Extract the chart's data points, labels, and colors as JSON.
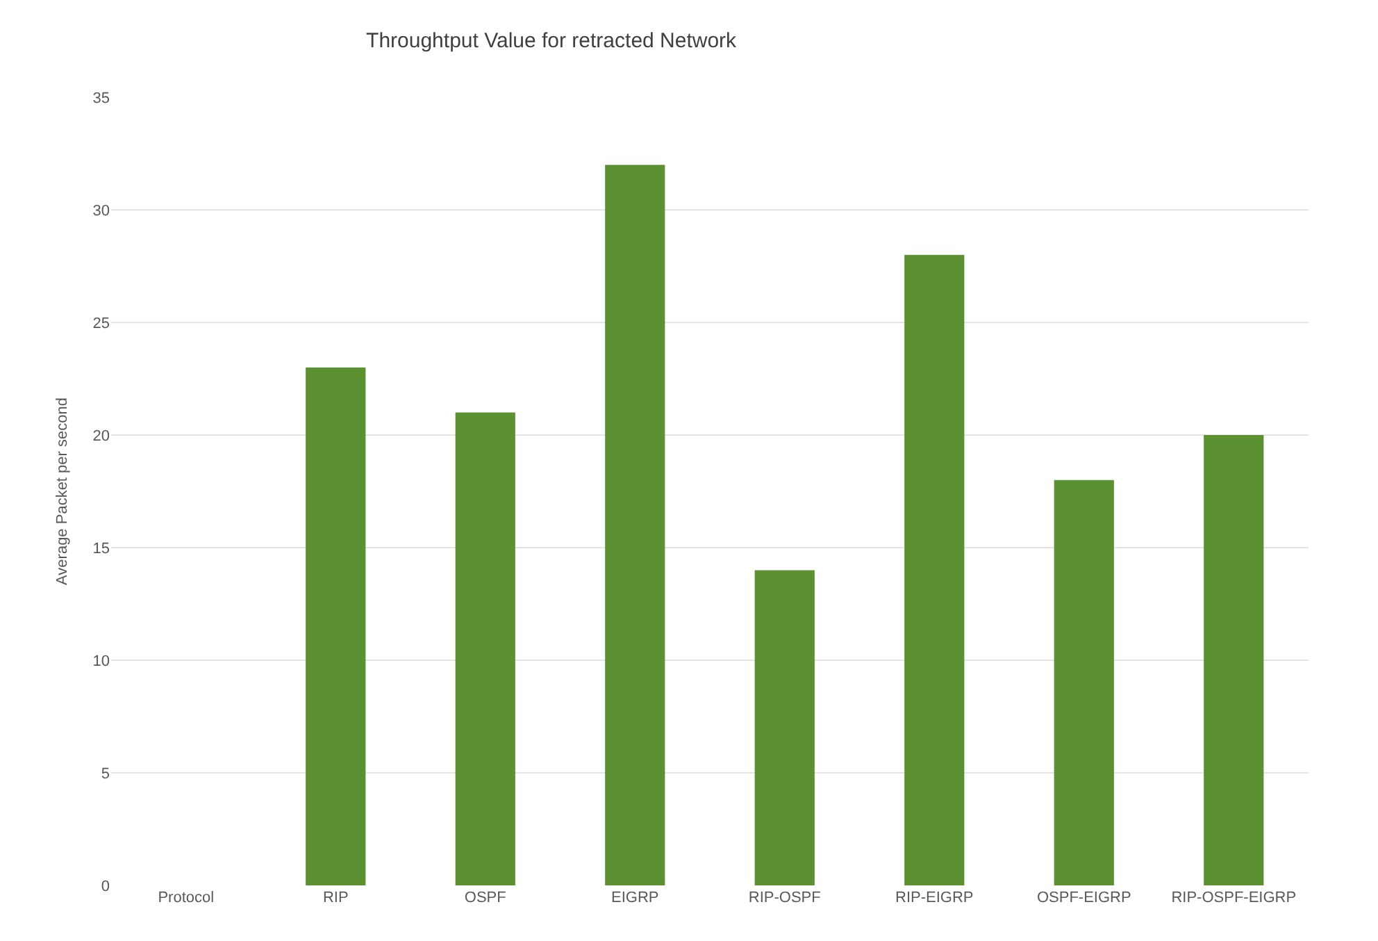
{
  "chart_data": {
    "type": "bar",
    "title": "Throughtput Value for retracted Network",
    "ylabel": "Average Packet per second",
    "categories": [
      "Protocol",
      "RIP",
      "OSPF",
      "EIGRP",
      "RIP-OSPF",
      "RIP-EIGRP",
      "OSPF-EIGRP",
      "RIP-OSPF-EIGRP"
    ],
    "values": [
      0,
      23,
      21,
      32,
      14,
      28,
      18,
      20
    ],
    "color": "#5b9131",
    "ylim": [
      0,
      35
    ],
    "yticks": [
      0,
      5,
      10,
      15,
      20,
      25,
      30,
      35
    ],
    "grid": "y"
  }
}
